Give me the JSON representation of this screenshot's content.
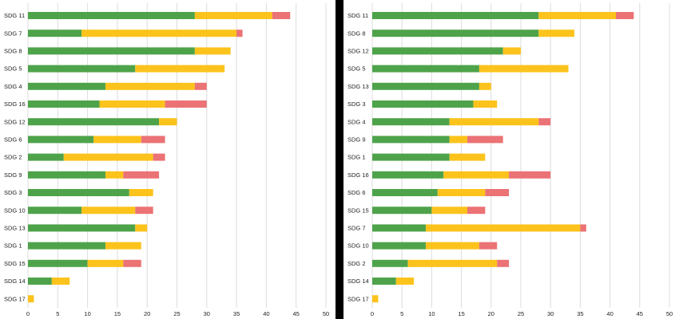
{
  "colors": {
    "green": "#4ea34a",
    "yellow": "#fcc31c",
    "red": "#eb7275",
    "grid": "#dcdcdc",
    "divider": "#000000"
  },
  "chart_data": [
    {
      "type": "bar",
      "orientation": "horizontal",
      "stacked": true,
      "categories": [
        "SDG 11",
        "SDG 7",
        "SDG 8",
        "SDG 5",
        "SDG 4",
        "SDG 16",
        "SDG 12",
        "SDG 6",
        "SDG 2",
        "SDG 9",
        "SDG 3",
        "SDG 10",
        "SDG 13",
        "SDG 1",
        "SDG 15",
        "SDG 14",
        "SDG 17"
      ],
      "series": [
        {
          "color": "#4ea34a",
          "values": [
            28,
            9,
            28,
            18,
            13,
            12,
            22,
            11,
            6,
            13,
            17,
            9,
            18,
            13,
            10,
            4,
            0
          ]
        },
        {
          "color": "#fcc31c",
          "values": [
            13,
            26,
            6,
            15,
            15,
            11,
            3,
            8,
            15,
            3,
            4,
            9,
            2,
            6,
            6,
            3,
            1
          ]
        },
        {
          "color": "#eb7275",
          "values": [
            3,
            1,
            0,
            0,
            2,
            7,
            0,
            4,
            2,
            6,
            0,
            3,
            0,
            0,
            3,
            0,
            0
          ]
        }
      ],
      "xticks": [
        0,
        5,
        10,
        15,
        20,
        25,
        30,
        35,
        40,
        45,
        50
      ],
      "xlim": [
        0,
        50
      ],
      "grid": true,
      "title": "",
      "xlabel": "",
      "ylabel": ""
    },
    {
      "type": "bar",
      "orientation": "horizontal",
      "stacked": true,
      "categories": [
        "SDG 11",
        "SDG 8",
        "SDG 12",
        "SDG 5",
        "SDG 13",
        "SDG 3",
        "SDG 4",
        "SDG 9",
        "SDG 1",
        "SDG 16",
        "SDG 6",
        "SDG 15",
        "SDG 7",
        "SDG 10",
        "SDG 2",
        "SDG 14",
        "SDG 17"
      ],
      "series": [
        {
          "color": "#4ea34a",
          "values": [
            28,
            28,
            22,
            18,
            18,
            17,
            13,
            13,
            13,
            12,
            11,
            10,
            9,
            9,
            6,
            4,
            0
          ]
        },
        {
          "color": "#fcc31c",
          "values": [
            13,
            6,
            3,
            15,
            2,
            4,
            15,
            3,
            6,
            11,
            8,
            6,
            26,
            9,
            15,
            3,
            1
          ]
        },
        {
          "color": "#eb7275",
          "values": [
            3,
            0,
            0,
            0,
            0,
            0,
            2,
            6,
            0,
            7,
            4,
            3,
            1,
            3,
            2,
            0,
            0
          ]
        }
      ],
      "xticks": [
        0,
        5,
        10,
        15,
        20,
        25,
        30,
        35,
        40,
        45,
        50
      ],
      "xlim": [
        0,
        50
      ],
      "grid": true,
      "title": "",
      "xlabel": "",
      "ylabel": ""
    }
  ]
}
